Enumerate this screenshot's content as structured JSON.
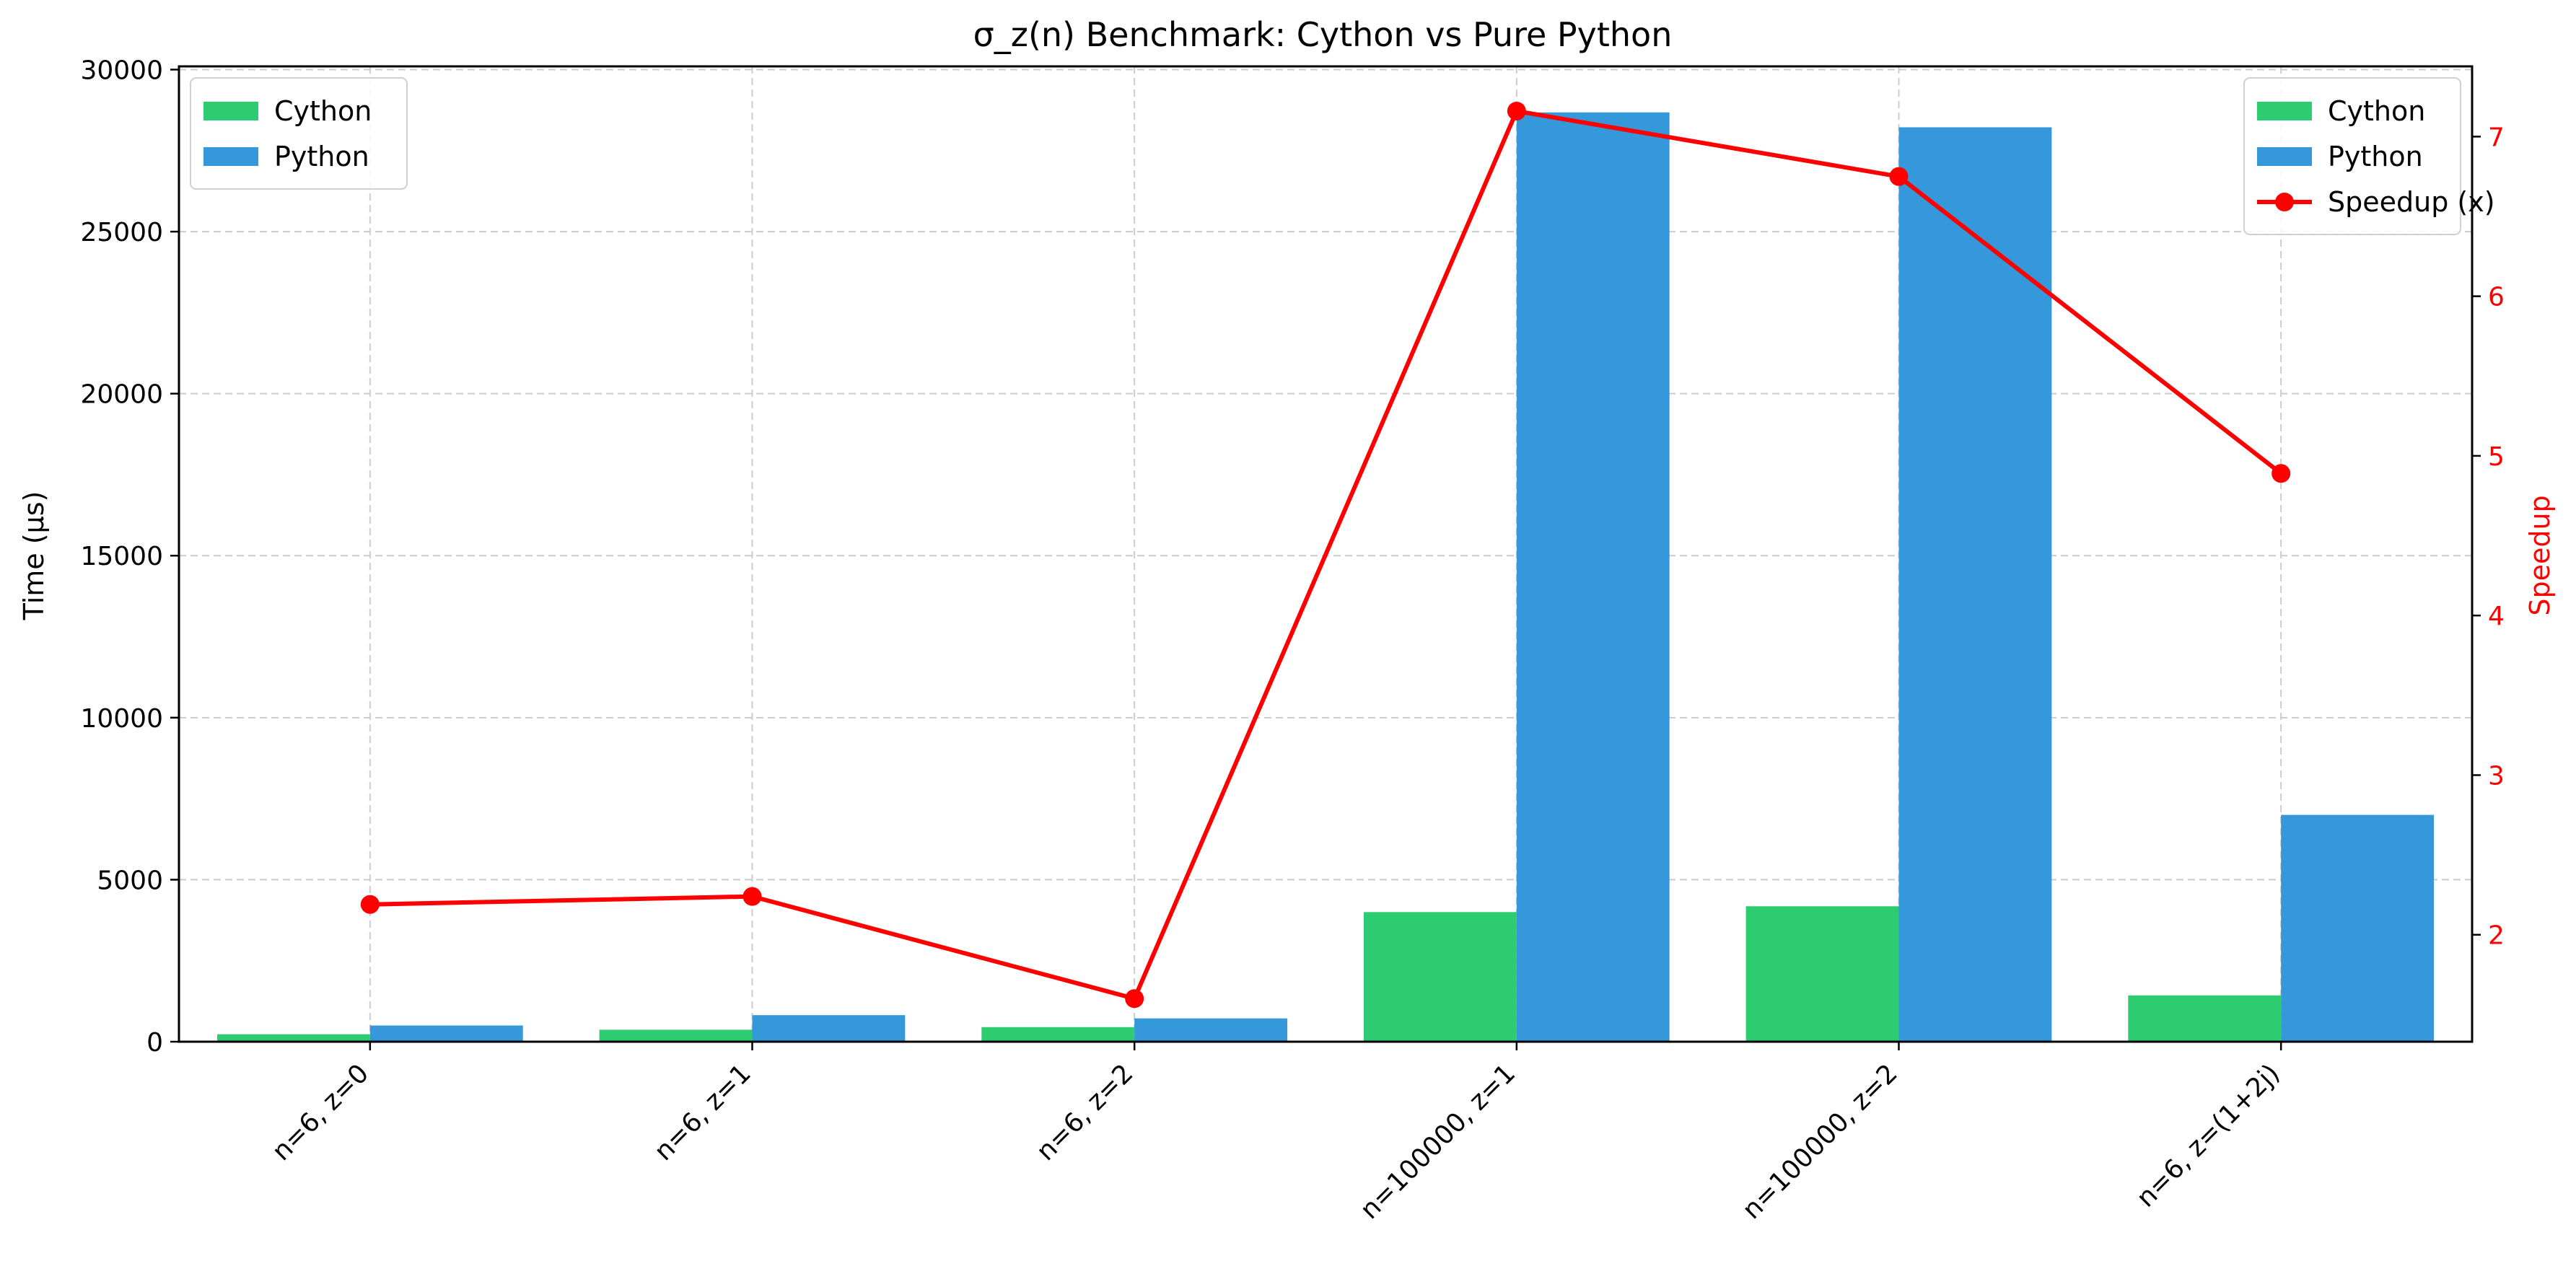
{
  "chart_data": {
    "type": "bar",
    "title": "σ_z(n) Benchmark: Cython vs Pure Python",
    "ylabel": "Time (µs)",
    "y2label": "Speedup",
    "categories": [
      "n=6, z=0",
      "n=6, z=1",
      "n=6, z=2",
      "n=100000, z=1",
      "n=100000, z=2",
      "n=6, z=(1+2j)"
    ],
    "series": [
      {
        "name": "Cython",
        "values": [
          230,
          370,
          450,
          4000,
          4180,
          1430
        ],
        "color": "#2ecc71"
      },
      {
        "name": "Python",
        "values": [
          500,
          820,
          720,
          28680,
          28220,
          7000
        ],
        "color": "#3498db"
      }
    ],
    "line_series": {
      "name": "Speedup (x)",
      "values": [
        2.19,
        2.24,
        1.6,
        7.16,
        6.75,
        4.89
      ],
      "color": "#ff0000"
    },
    "ylim": [
      0,
      30100
    ],
    "yticks": [
      0,
      5000,
      10000,
      15000,
      20000,
      25000,
      30000
    ],
    "y2lim": [
      1.33,
      7.44
    ],
    "y2ticks": [
      2,
      3,
      4,
      5,
      6,
      7
    ],
    "grid": true,
    "legend_left": [
      "Cython",
      "Python"
    ],
    "legend_right": [
      "Cython",
      "Python",
      "Speedup (x)"
    ]
  }
}
